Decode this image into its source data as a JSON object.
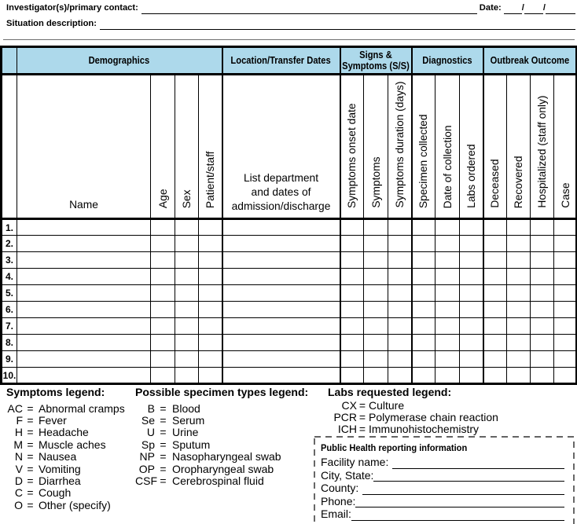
{
  "page": {
    "investigator_label": "Investigator(s)/primary contact:",
    "date_label": "Date:",
    "date_separator": "/",
    "situation_label": "Situation description:"
  },
  "table": {
    "groups": [
      {
        "label": "Demographics"
      },
      {
        "label": "Location/Transfer Dates"
      },
      {
        "label": "Signs & Symptoms (S/S)"
      },
      {
        "label": "Diagnostics"
      },
      {
        "label": "Outbreak Outcome"
      }
    ],
    "columns": [
      {
        "label": "Name"
      },
      {
        "label": "Age"
      },
      {
        "label": "Sex"
      },
      {
        "label": "Patient/staff"
      },
      {
        "label": "List department\nand dates of\nadmission/discharge"
      },
      {
        "label": "Symptoms onset date"
      },
      {
        "label": "Symptoms"
      },
      {
        "label": "Symptoms duration (days)"
      },
      {
        "label": "Specimen collected"
      },
      {
        "label": "Date of collection"
      },
      {
        "label": "Labs ordered"
      },
      {
        "label": "Deceased"
      },
      {
        "label": "Recovered"
      },
      {
        "label": "Hospitalized (staff only)"
      },
      {
        "label": "Case"
      }
    ],
    "row_numbers": [
      "1.",
      "2.",
      "3.",
      "4.",
      "5.",
      "6.",
      "7.",
      "8.",
      "9.",
      "10."
    ]
  },
  "legends": [
    {
      "title": "Symptoms legend:",
      "eq": "=",
      "items": [
        {
          "abbr": "AC",
          "meaning": "Abnormal cramps"
        },
        {
          "abbr": "F",
          "meaning": "Fever"
        },
        {
          "abbr": "H",
          "meaning": "Headache"
        },
        {
          "abbr": "M",
          "meaning": "Muscle aches"
        },
        {
          "abbr": "N",
          "meaning": "Nausea"
        },
        {
          "abbr": "V",
          "meaning": "Vomiting"
        },
        {
          "abbr": "D",
          "meaning": "Diarrhea"
        },
        {
          "abbr": "C",
          "meaning": "Cough"
        },
        {
          "abbr": "O",
          "meaning": "Other (specify)"
        }
      ]
    },
    {
      "title": "Possible specimen types legend:",
      "eq": "=",
      "items": [
        {
          "abbr": "B",
          "meaning": "Blood"
        },
        {
          "abbr": "Se",
          "meaning": "Serum"
        },
        {
          "abbr": "U",
          "meaning": "Urine"
        },
        {
          "abbr": "Sp",
          "meaning": "Sputum"
        },
        {
          "abbr": "NP",
          "meaning": "Nasopharyngeal swab"
        },
        {
          "abbr": "OP",
          "meaning": "Oropharyngeal swab"
        },
        {
          "abbr": "CSF",
          "meaning": "Cerebrospinal fluid"
        }
      ]
    },
    {
      "title": "Labs requested legend:",
      "eq": "=",
      "items": [
        {
          "abbr": "CX",
          "meaning": "Culture"
        },
        {
          "abbr": "PCR",
          "meaning": "Polymerase chain reaction"
        },
        {
          "abbr": "ICH",
          "meaning": "Immunohistochemistry"
        }
      ]
    }
  ],
  "reporting_box": {
    "title": "Public Health reporting information",
    "fields": [
      {
        "label": "Facility name:",
        "gap": true
      },
      {
        "label": "City, State:",
        "gap": false
      },
      {
        "label": "County:",
        "gap": true
      },
      {
        "label": "Phone:",
        "gap": false
      },
      {
        "label": "Email:",
        "gap": false
      }
    ]
  },
  "colors": {
    "header_blue": "#ADD9EB"
  }
}
